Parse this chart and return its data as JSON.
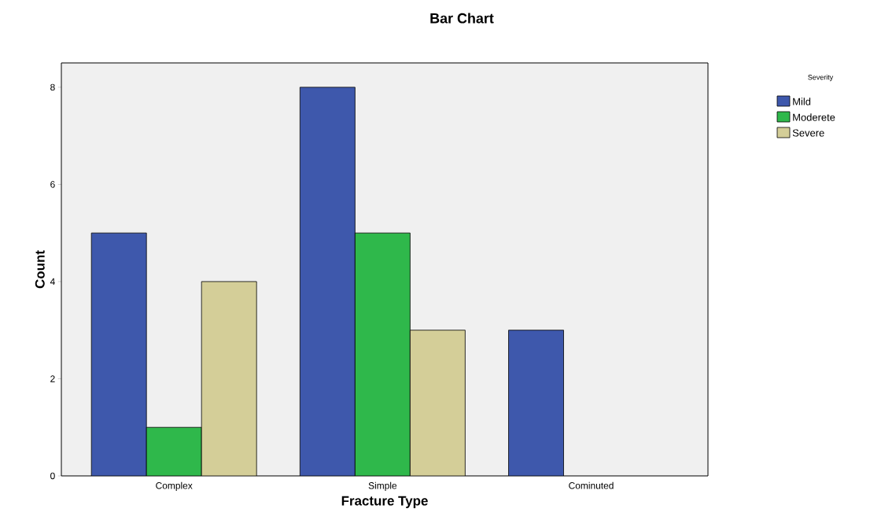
{
  "chart_data": {
    "type": "bar",
    "title": "Bar Chart",
    "xlabel": "Fracture Type",
    "ylabel": "Count",
    "legend_title": "Severity",
    "categories": [
      "Complex",
      "Simple",
      "Cominuted"
    ],
    "series": [
      {
        "name": "Mild",
        "color": "#3e58ac",
        "values": [
          5,
          8,
          3
        ]
      },
      {
        "name": "Moderete",
        "color": "#2fb84b",
        "values": [
          1,
          5,
          null
        ]
      },
      {
        "name": "Severe",
        "color": "#d4ce98",
        "values": [
          4,
          3,
          null
        ]
      }
    ],
    "ylim": [
      0,
      8.5
    ],
    "yticks": [
      0,
      2,
      4,
      6,
      8
    ],
    "grid": false,
    "legend": "top right"
  }
}
